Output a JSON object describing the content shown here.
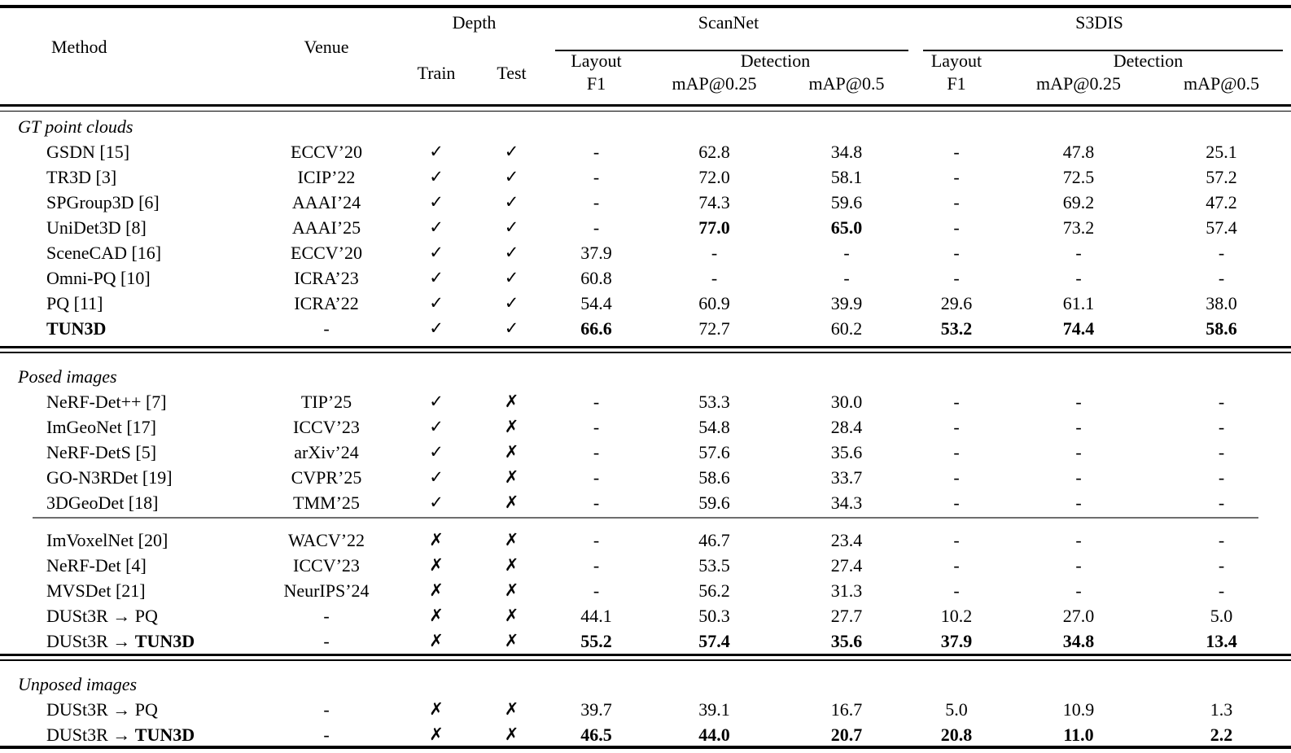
{
  "table": {
    "header": {
      "method": "Method",
      "venue": "Venue",
      "depth": "Depth",
      "train": "Train",
      "test": "Test",
      "scannet": "ScanNet",
      "s3dis": "S3DIS",
      "layout": "Layout",
      "f1": "F1",
      "detection": "Detection",
      "map25": "mAP@0.25",
      "map50": "mAP@0.5"
    },
    "marks": {
      "check": "✓",
      "cross": "✗",
      "none": "-"
    },
    "colors": {
      "text": "#000000",
      "background": "#ffffff",
      "thin_rule": "#6e6e6e"
    },
    "sections": [
      {
        "label": "GT point clouds",
        "rows": [
          {
            "method_prefix": "GSDN [15]",
            "method_bold": "",
            "venue": "ECCV’20",
            "train": "✓",
            "test": "✓",
            "values": [
              "-",
              "62.8",
              "34.8",
              "-",
              "47.8",
              "25.1"
            ],
            "bold": []
          },
          {
            "method_prefix": "TR3D [3]",
            "method_bold": "",
            "venue": "ICIP’22",
            "train": "✓",
            "test": "✓",
            "values": [
              "-",
              "72.0",
              "58.1",
              "-",
              "72.5",
              "57.2"
            ],
            "bold": []
          },
          {
            "method_prefix": "SPGroup3D [6]",
            "method_bold": "",
            "venue": "AAAI’24",
            "train": "✓",
            "test": "✓",
            "values": [
              "-",
              "74.3",
              "59.6",
              "-",
              "69.2",
              "47.2"
            ],
            "bold": []
          },
          {
            "method_prefix": "UniDet3D [8]",
            "method_bold": "",
            "venue": "AAAI’25",
            "train": "✓",
            "test": "✓",
            "values": [
              "-",
              "77.0",
              "65.0",
              "-",
              "73.2",
              "57.4"
            ],
            "bold": [
              1,
              2
            ]
          },
          {
            "method_prefix": "SceneCAD [16]",
            "method_bold": "",
            "venue": "ECCV’20",
            "train": "✓",
            "test": "✓",
            "values": [
              "37.9",
              "-",
              "-",
              "-",
              "-",
              "-"
            ],
            "bold": []
          },
          {
            "method_prefix": "Omni-PQ [10]",
            "method_bold": "",
            "venue": "ICRA’23",
            "train": "✓",
            "test": "✓",
            "values": [
              "60.8",
              "-",
              "-",
              "-",
              "-",
              "-"
            ],
            "bold": []
          },
          {
            "method_prefix": "PQ [11]",
            "method_bold": "",
            "venue": "ICRA’22",
            "train": "✓",
            "test": "✓",
            "values": [
              "54.4",
              "60.9",
              "39.9",
              "29.6",
              "61.1",
              "38.0"
            ],
            "bold": []
          },
          {
            "method_prefix": "",
            "method_bold": "TUN3D",
            "venue": "-",
            "train": "✓",
            "test": "✓",
            "values": [
              "66.6",
              "72.7",
              "60.2",
              "53.2",
              "74.4",
              "58.6"
            ],
            "bold": [
              0,
              3,
              4,
              5
            ]
          }
        ]
      },
      {
        "label": "Posed images",
        "rows": [
          {
            "method_prefix": "NeRF-Det++ [7]",
            "method_bold": "",
            "venue": "TIP’25",
            "train": "✓",
            "test": "✗",
            "values": [
              "-",
              "53.3",
              "30.0",
              "-",
              "-",
              "-"
            ],
            "bold": []
          },
          {
            "method_prefix": "ImGeoNet [17]",
            "method_bold": "",
            "venue": "ICCV’23",
            "train": "✓",
            "test": "✗",
            "values": [
              "-",
              "54.8",
              "28.4",
              "-",
              "-",
              "-"
            ],
            "bold": []
          },
          {
            "method_prefix": "NeRF-DetS [5]",
            "method_bold": "",
            "venue": "arXiv’24",
            "train": "✓",
            "test": "✗",
            "values": [
              "-",
              "57.6",
              "35.6",
              "-",
              "-",
              "-"
            ],
            "bold": []
          },
          {
            "method_prefix": "GO-N3RDet [19]",
            "method_bold": "",
            "venue": "CVPR’25",
            "train": "✓",
            "test": "✗",
            "values": [
              "-",
              "58.6",
              "33.7",
              "-",
              "-",
              "-"
            ],
            "bold": []
          },
          {
            "method_prefix": "3DGeoDet [18]",
            "method_bold": "",
            "venue": "TMM’25",
            "train": "✓",
            "test": "✗",
            "values": [
              "-",
              "59.6",
              "34.3",
              "-",
              "-",
              "-"
            ],
            "bold": []
          },
          {
            "rule_before": true,
            "method_prefix": "ImVoxelNet [20]",
            "method_bold": "",
            "venue": "WACV’22",
            "train": "✗",
            "test": "✗",
            "values": [
              "-",
              "46.7",
              "23.4",
              "-",
              "-",
              "-"
            ],
            "bold": []
          },
          {
            "method_prefix": "NeRF-Det [4]",
            "method_bold": "",
            "venue": "ICCV’23",
            "train": "✗",
            "test": "✗",
            "values": [
              "-",
              "53.5",
              "27.4",
              "-",
              "-",
              "-"
            ],
            "bold": []
          },
          {
            "method_prefix": "MVSDet [21]",
            "method_bold": "",
            "venue": "NeurIPS’24",
            "train": "✗",
            "test": "✗",
            "values": [
              "-",
              "56.2",
              "31.3",
              "-",
              "-",
              "-"
            ],
            "bold": []
          },
          {
            "method_prefix": "DUSt3R → PQ",
            "method_bold": "",
            "venue": "-",
            "train": "✗",
            "test": "✗",
            "values": [
              "44.1",
              "50.3",
              "27.7",
              "10.2",
              "27.0",
              "5.0"
            ],
            "bold": []
          },
          {
            "method_prefix": "DUSt3R → ",
            "method_bold": "TUN3D",
            "venue": "-",
            "train": "✗",
            "test": "✗",
            "values": [
              "55.2",
              "57.4",
              "35.6",
              "37.9",
              "34.8",
              "13.4"
            ],
            "bold": [
              0,
              1,
              2,
              3,
              4,
              5
            ]
          }
        ]
      },
      {
        "label": "Unposed images",
        "rows": [
          {
            "method_prefix": "DUSt3R → PQ",
            "method_bold": "",
            "venue": "-",
            "train": "✗",
            "test": "✗",
            "values": [
              "39.7",
              "39.1",
              "16.7",
              "5.0",
              "10.9",
              "1.3"
            ],
            "bold": []
          },
          {
            "method_prefix": "DUSt3R → ",
            "method_bold": "TUN3D",
            "venue": "-",
            "train": "✗",
            "test": "✗",
            "values": [
              "46.5",
              "44.0",
              "20.7",
              "20.8",
              "11.0",
              "2.2"
            ],
            "bold": [
              0,
              1,
              2,
              3,
              4,
              5
            ]
          }
        ]
      }
    ]
  }
}
